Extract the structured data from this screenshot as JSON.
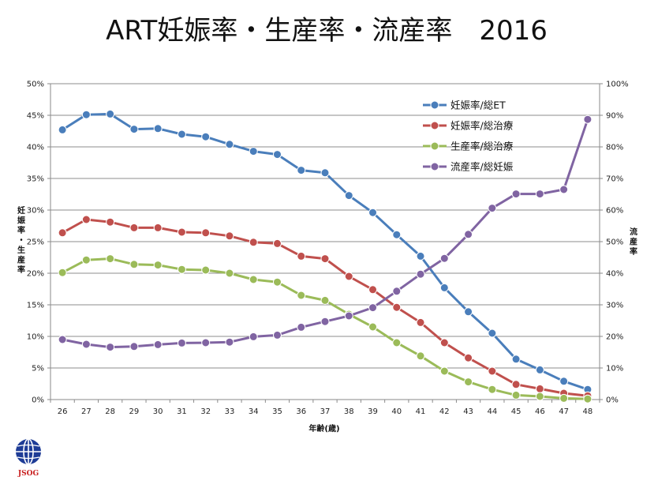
{
  "chart_data": {
    "type": "line",
    "title": "ART妊娠率・生産率・流産率　2016",
    "xlabel": "年齢(歳)",
    "ylabel_left": [
      "妊",
      "娠",
      "率",
      "・",
      "生",
      "産",
      "率"
    ],
    "ylabel_right": [
      "流",
      "産",
      "率"
    ],
    "x": [
      26,
      27,
      28,
      29,
      30,
      31,
      32,
      33,
      34,
      35,
      36,
      37,
      38,
      39,
      40,
      41,
      42,
      43,
      44,
      45,
      46,
      47,
      48
    ],
    "y_left_ticks": [
      "0%",
      "5%",
      "10%",
      "15%",
      "20%",
      "25%",
      "30%",
      "35%",
      "40%",
      "45%",
      "50%"
    ],
    "y_right_ticks": [
      "0%",
      "10%",
      "20%",
      "30%",
      "40%",
      "50%",
      "60%",
      "70%",
      "80%",
      "90%",
      "100%"
    ],
    "ylim_left": [
      0,
      50
    ],
    "ylim_right": [
      0,
      100
    ],
    "grid": true,
    "legend_position": "top-right",
    "series": [
      {
        "name": "妊娠率/総ET",
        "axis": "left",
        "color": "#4a7ebb",
        "values": [
          42.7,
          45.1,
          45.2,
          42.8,
          42.9,
          42.0,
          41.6,
          40.4,
          39.3,
          38.8,
          36.3,
          35.9,
          32.3,
          29.6,
          26.1,
          22.7,
          17.7,
          13.9,
          10.5,
          6.4,
          4.7,
          2.9,
          1.6
        ]
      },
      {
        "name": "妊娠率/総治療",
        "axis": "left",
        "color": "#c0504d",
        "values": [
          26.4,
          28.5,
          28.1,
          27.2,
          27.2,
          26.5,
          26.4,
          25.9,
          24.9,
          24.7,
          22.7,
          22.3,
          19.5,
          17.4,
          14.6,
          12.2,
          9.0,
          6.6,
          4.5,
          2.4,
          1.7,
          1.0,
          0.6
        ]
      },
      {
        "name": "生産率/総治療",
        "axis": "left",
        "color": "#9bbb59",
        "values": [
          20.1,
          22.1,
          22.3,
          21.4,
          21.3,
          20.6,
          20.5,
          20.0,
          19.0,
          18.6,
          16.5,
          15.7,
          13.5,
          11.5,
          9.0,
          6.9,
          4.5,
          2.8,
          1.6,
          0.7,
          0.5,
          0.2,
          0.1
        ]
      },
      {
        "name": "流産率/総妊娠",
        "axis": "right",
        "color": "#8064a2",
        "values": [
          19.0,
          17.5,
          16.6,
          16.8,
          17.4,
          17.9,
          18.0,
          18.2,
          19.9,
          20.4,
          22.9,
          24.7,
          26.5,
          29.1,
          34.3,
          39.7,
          44.7,
          52.3,
          60.6,
          65.1,
          65.1,
          66.5,
          88.7
        ]
      }
    ]
  },
  "logo": {
    "text": "JSOG",
    "color": "#c81e1e",
    "globe_color": "#1e3c96"
  }
}
